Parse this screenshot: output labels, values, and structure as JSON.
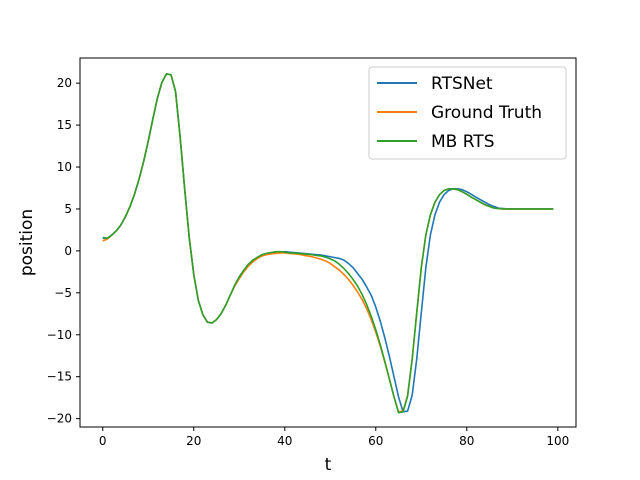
{
  "chart_data": {
    "type": "line",
    "title": "",
    "xlabel": "t",
    "ylabel": "position",
    "xlim": [
      -5,
      104
    ],
    "ylim": [
      -21,
      23
    ],
    "xticks": [
      0,
      20,
      40,
      60,
      80,
      100
    ],
    "yticks": [
      20,
      15,
      10,
      5,
      0,
      -5,
      -10,
      -15,
      -20
    ],
    "grid": false,
    "legend_position": "top-right",
    "x": [
      0,
      1,
      2,
      3,
      4,
      5,
      6,
      7,
      8,
      9,
      10,
      11,
      12,
      13,
      14,
      15,
      16,
      17,
      18,
      19,
      20,
      21,
      22,
      23,
      24,
      25,
      26,
      27,
      28,
      29,
      30,
      31,
      32,
      33,
      34,
      35,
      36,
      37,
      38,
      39,
      40,
      41,
      42,
      43,
      44,
      45,
      46,
      47,
      48,
      49,
      50,
      51,
      52,
      53,
      54,
      55,
      56,
      57,
      58,
      59,
      60,
      61,
      62,
      63,
      64,
      65,
      66,
      67,
      68,
      69,
      70,
      71,
      72,
      73,
      74,
      75,
      76,
      77,
      78,
      79,
      80,
      81,
      82,
      83,
      84,
      85,
      86,
      87,
      88,
      89,
      90,
      91,
      92,
      93,
      94,
      95,
      96,
      97,
      98,
      99
    ],
    "series": [
      {
        "name": "RTSNet",
        "color": "#1f77b4",
        "values": [
          1.5,
          1.5,
          1.9,
          2.4,
          3.1,
          4.1,
          5.3,
          6.8,
          8.6,
          10.7,
          13.1,
          15.7,
          18.2,
          20.1,
          21.1,
          21.0,
          19.0,
          13.6,
          7.4,
          1.6,
          -2.8,
          -5.9,
          -7.6,
          -8.5,
          -8.6,
          -8.2,
          -7.5,
          -6.5,
          -5.3,
          -4.1,
          -3.1,
          -2.3,
          -1.6,
          -1.1,
          -0.8,
          -0.5,
          -0.35,
          -0.25,
          -0.2,
          -0.15,
          -0.1,
          -0.15,
          -0.2,
          -0.25,
          -0.3,
          -0.35,
          -0.4,
          -0.45,
          -0.5,
          -0.6,
          -0.7,
          -0.8,
          -0.9,
          -1.1,
          -1.5,
          -2.0,
          -2.7,
          -3.4,
          -4.3,
          -5.3,
          -6.7,
          -8.4,
          -10.4,
          -12.6,
          -15.0,
          -17.4,
          -19.2,
          -19.1,
          -17.2,
          -12.9,
          -7.4,
          -2.0,
          1.9,
          4.3,
          5.8,
          6.7,
          7.2,
          7.4,
          7.4,
          7.3,
          7.05,
          6.75,
          6.4,
          6.1,
          5.8,
          5.5,
          5.3,
          5.1,
          5.05,
          5.0,
          5.0,
          5.0,
          5.0,
          5.0,
          5.0,
          5.0,
          5.0,
          5.0,
          5.0,
          5.0
        ]
      },
      {
        "name": "Ground Truth",
        "color": "#ff7f0e",
        "values": [
          1.2,
          1.4,
          1.9,
          2.4,
          3.1,
          4.1,
          5.3,
          6.8,
          8.6,
          10.7,
          13.1,
          15.7,
          18.2,
          20.1,
          21.1,
          21.0,
          19.0,
          13.6,
          7.4,
          1.6,
          -2.8,
          -5.9,
          -7.6,
          -8.5,
          -8.6,
          -8.2,
          -7.5,
          -6.5,
          -5.3,
          -4.2,
          -3.3,
          -2.5,
          -1.8,
          -1.3,
          -0.9,
          -0.6,
          -0.45,
          -0.35,
          -0.3,
          -0.25,
          -0.25,
          -0.3,
          -0.35,
          -0.4,
          -0.5,
          -0.6,
          -0.7,
          -0.85,
          -1.0,
          -1.2,
          -1.5,
          -1.9,
          -2.3,
          -2.8,
          -3.4,
          -4.1,
          -4.9,
          -5.8,
          -6.9,
          -8.2,
          -9.7,
          -11.4,
          -13.3,
          -15.3,
          -17.4,
          -19.2,
          -19.1,
          -17.2,
          -12.9,
          -7.4,
          -2.0,
          1.9,
          4.3,
          5.8,
          6.7,
          7.2,
          7.4,
          7.4,
          7.3,
          7.05,
          6.75,
          6.4,
          6.1,
          5.8,
          5.5,
          5.3,
          5.1,
          5.05,
          5.0,
          5.0,
          5.0,
          5.0,
          5.0,
          5.0,
          5.0,
          5.0,
          5.0,
          5.0,
          5.0,
          5.0
        ]
      },
      {
        "name": "MB RTS",
        "color": "#2ca02c",
        "values": [
          1.6,
          1.5,
          1.9,
          2.4,
          3.1,
          4.1,
          5.3,
          6.8,
          8.6,
          10.7,
          13.1,
          15.7,
          18.2,
          20.1,
          21.1,
          21.0,
          19.0,
          13.6,
          7.4,
          1.6,
          -2.8,
          -5.9,
          -7.6,
          -8.5,
          -8.6,
          -8.2,
          -7.5,
          -6.5,
          -5.3,
          -4.1,
          -3.1,
          -2.3,
          -1.6,
          -1.1,
          -0.75,
          -0.45,
          -0.3,
          -0.2,
          -0.1,
          -0.1,
          -0.15,
          -0.25,
          -0.25,
          -0.3,
          -0.35,
          -0.4,
          -0.45,
          -0.55,
          -0.6,
          -0.75,
          -0.95,
          -1.2,
          -1.6,
          -2.1,
          -2.7,
          -3.4,
          -4.2,
          -5.2,
          -6.4,
          -7.8,
          -9.4,
          -11.2,
          -13.2,
          -15.3,
          -17.4,
          -19.3,
          -19.2,
          -17.3,
          -12.9,
          -7.4,
          -2.0,
          1.9,
          4.3,
          5.8,
          6.7,
          7.2,
          7.4,
          7.4,
          7.3,
          7.05,
          6.75,
          6.4,
          6.1,
          5.8,
          5.5,
          5.3,
          5.1,
          5.05,
          5.0,
          5.0,
          5.0,
          5.0,
          5.0,
          5.0,
          5.0,
          5.0,
          5.0,
          5.0,
          5.0,
          5.0
        ]
      }
    ]
  }
}
